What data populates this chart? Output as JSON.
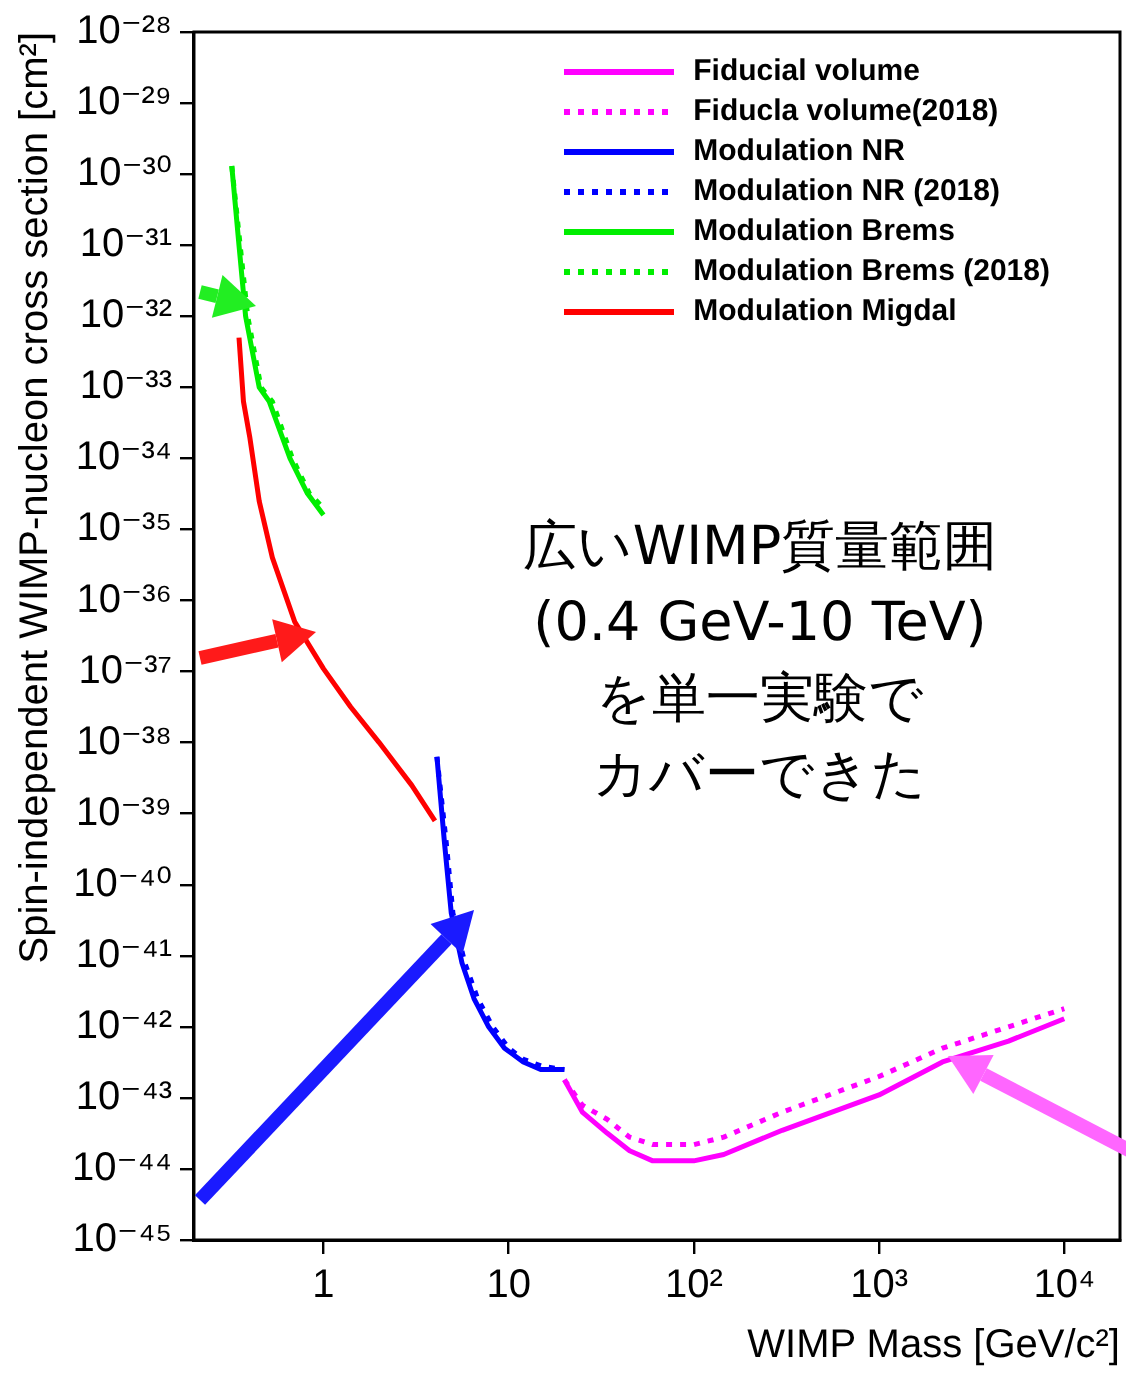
{
  "chart_data": {
    "type": "line",
    "xlabel": "WIMP Mass [GeV/c²]",
    "ylabel": "Spin-independent WIMP-nucleon cross section [cm²]",
    "log": "xy",
    "grid": false,
    "legend": "top right",
    "marker": "none",
    "xlim": [
      0.2,
      20000
    ],
    "ylim": [
      1e-45,
      1e-28
    ],
    "xticks": [
      1,
      10,
      {
        "value": 100,
        "label": "10²"
      },
      {
        "value": 1000,
        "label": "10³"
      },
      {
        "value": 10000,
        "label": "10⁴"
      }
    ],
    "yticks": [
      {
        "value": 1e-45,
        "label": "10⁻⁴⁵"
      },
      {
        "value": 1e-44,
        "label": "10⁻⁴⁴"
      },
      {
        "value": 1e-43,
        "label": "10⁻⁴³"
      },
      {
        "value": 1e-42,
        "label": "10⁻⁴²"
      },
      {
        "value": 1e-41,
        "label": "10⁻⁴¹"
      },
      {
        "value": 1e-40,
        "label": "10⁻⁴⁰"
      },
      {
        "value": 1e-39,
        "label": "10⁻³⁹"
      },
      {
        "value": 1e-38,
        "label": "10⁻³⁸"
      },
      {
        "value": 1e-37,
        "label": "10⁻³⁷"
      },
      {
        "value": 1e-36,
        "label": "10⁻³⁶"
      },
      {
        "value": 1e-35,
        "label": "10⁻³⁵"
      },
      {
        "value": 1e-34,
        "label": "10⁻³⁴"
      },
      {
        "value": 1e-33,
        "label": "10⁻³³"
      },
      {
        "value": 1e-32,
        "label": "10⁻³²"
      },
      {
        "value": 1e-31,
        "label": "10⁻³¹"
      },
      {
        "value": 1e-30,
        "label": "10⁻³⁰"
      },
      {
        "value": 1e-29,
        "label": "10⁻²⁹"
      },
      {
        "value": 1e-28,
        "label": "10⁻²⁸"
      }
    ],
    "annotations": [
      "広いWIMP質量範囲",
      "(0.4 GeV-10 TeV)",
      "を単一実験で",
      "カバーできた"
    ],
    "series": [
      {
        "name": "Fiducial volume",
        "color": "#ff00ff",
        "line_style": "solid",
        "x": [
          20,
          25,
          34,
          45,
          60,
          100,
          145,
          300,
          1000,
          2200,
          5000,
          10000
        ],
        "values": [
          1.8e-43,
          6.3e-44,
          3.2e-44,
          1.8e-44,
          1.3e-44,
          1.3e-44,
          1.6e-44,
          3.5e-44,
          1.1e-43,
          3.2e-43,
          6.3e-43,
          1.3e-42
        ]
      },
      {
        "name": "Fiducla volume(2018)",
        "color": "#ff00ff",
        "line_style": "dotted",
        "x": [
          20,
          25,
          34,
          45,
          60,
          100,
          145,
          300,
          1000,
          2200,
          5000,
          10000
        ],
        "values": [
          1.8e-43,
          7.9e-44,
          5e-44,
          2.8e-44,
          2.2e-44,
          2.2e-44,
          2.8e-44,
          6.3e-44,
          2e-43,
          5e-43,
          1e-42,
          1.8e-42
        ]
      },
      {
        "name": "Modulation NR",
        "color": "#0000ff",
        "line_style": "solid",
        "x": [
          4.1,
          4.5,
          4.9,
          5.6,
          6.5,
          7.8,
          9.5,
          12,
          15,
          20
        ],
        "values": [
          6.3e-39,
          4e-40,
          4e-41,
          7.9e-42,
          2.5e-42,
          1e-42,
          5e-43,
          3.2e-43,
          2.5e-43,
          2.5e-43
        ]
      },
      {
        "name": "Modulation NR (2018)",
        "color": "#0000ff",
        "line_style": "dotted",
        "x": [
          4.1,
          4.6,
          5.0,
          5.8,
          6.8,
          8.2,
          10,
          12,
          15,
          20
        ],
        "values": [
          6.3e-39,
          4e-40,
          4e-41,
          7.9e-42,
          2.5e-42,
          1e-42,
          5e-43,
          3.5e-43,
          2.8e-43,
          2.5e-43
        ]
      },
      {
        "name": "Modulation Brems",
        "color": "#00ee00",
        "line_style": "solid",
        "x": [
          0.32,
          0.35,
          0.38,
          0.45,
          0.51,
          0.66,
          0.82,
          1.0
        ],
        "values": [
          1.3e-30,
          1e-31,
          1e-32,
          1e-33,
          6.3e-34,
          1e-34,
          3.2e-35,
          1.6e-35
        ]
      },
      {
        "name": "Modulation Brems (2018)",
        "color": "#00ee00",
        "line_style": "dotted",
        "x": [
          0.32,
          0.355,
          0.39,
          0.46,
          0.53,
          0.68,
          0.84,
          1.0
        ],
        "values": [
          1.3e-30,
          1e-31,
          1e-32,
          1e-33,
          6.3e-34,
          1e-34,
          3.2e-35,
          2e-35
        ]
      },
      {
        "name": "Modulation Migdal",
        "color": "#ff0000",
        "line_style": "solid",
        "x": [
          0.35,
          0.37,
          0.4,
          0.45,
          0.53,
          0.7,
          1.0,
          1.4,
          2.0,
          3.0,
          4.0
        ],
        "values": [
          5e-33,
          6.3e-34,
          2e-34,
          2.5e-35,
          4e-36,
          5e-37,
          1.1e-37,
          3.2e-38,
          1e-38,
          2.5e-39,
          7.9e-40
        ]
      }
    ]
  }
}
